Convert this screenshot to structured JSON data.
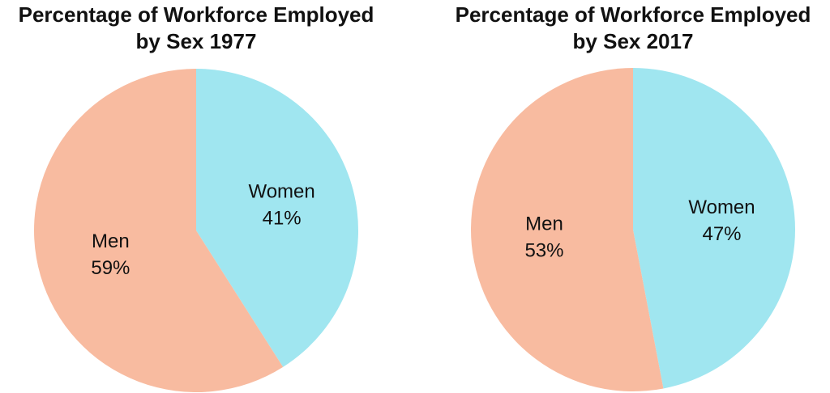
{
  "chart_data": [
    {
      "type": "pie",
      "title": "Percentage of Workforce Employed by Sex 1977",
      "categories": [
        "Women",
        "Men"
      ],
      "values": [
        41,
        59
      ],
      "value_labels": [
        "41%",
        "59%"
      ],
      "colors": [
        "#a0e6f0",
        "#f8bba0"
      ]
    },
    {
      "type": "pie",
      "title": "Percentage of Workforce Employed by Sex 2017",
      "categories": [
        "Women",
        "Men"
      ],
      "values": [
        47,
        53
      ],
      "value_labels": [
        "47%",
        "53%"
      ],
      "colors": [
        "#a0e6f0",
        "#f8bba0"
      ]
    }
  ]
}
